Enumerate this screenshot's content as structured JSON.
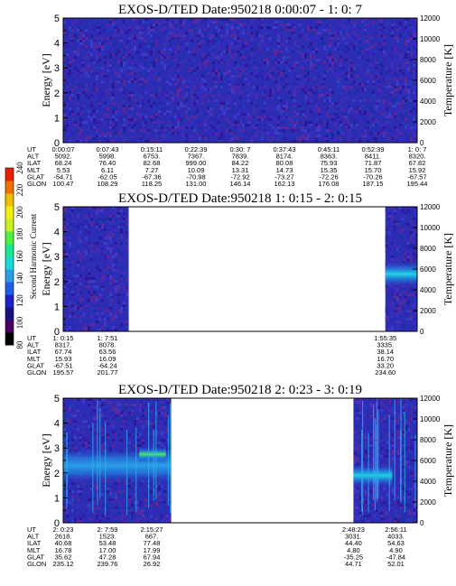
{
  "colorbar": {
    "label": "Second Harmonic Current",
    "ticks": [
      "80",
      "100",
      "120",
      "140",
      "160",
      "180",
      "200",
      "220",
      "240"
    ],
    "colors": [
      "#000000",
      "#4a0060",
      "#1a1080",
      "#2020c8",
      "#1f5fe8",
      "#2a9fe8",
      "#18d8d8",
      "#18e890",
      "#50f040",
      "#c8f020",
      "#f0f010",
      "#f0c000",
      "#f07000",
      "#e82000"
    ]
  },
  "info_row_labels": [
    "UT",
    "ALT",
    "ILAT",
    "MLT",
    "GLAT",
    "GLON"
  ],
  "chart_data": [
    {
      "type": "heatmap",
      "title": "EXOS-D/TED   Date:950218  0:00:07 - 1: 0: 7",
      "ylabel": "Energy [eV]",
      "y2label": "Temperature [K]",
      "ylim": [
        0,
        5
      ],
      "y2lim": [
        0,
        12000
      ],
      "yticks": [
        "0",
        "1",
        "2",
        "3",
        "4",
        "5"
      ],
      "y2ticks": [
        "0",
        "2000",
        "4000",
        "6000",
        "8000",
        "10000",
        "12000"
      ],
      "data_coverage": [
        [
          0,
          1
        ]
      ],
      "bands": [],
      "info_columns": [
        {
          "UT": "0:00:07",
          "ALT": "5092.",
          "ILAT": "68.24",
          "MLT": "5.53",
          "GLAT": "-54.71",
          "GLON": "100.47"
        },
        {
          "UT": "0:07:43",
          "ALT": "5998.",
          "ILAT": "76.40",
          "MLT": "6.11",
          "GLAT": "-62.05",
          "GLON": "108.29"
        },
        {
          "UT": "0:15:11",
          "ALT": "6753.",
          "ILAT": "82.68",
          "MLT": "7.27",
          "GLAT": "-67.36",
          "GLON": "118.25"
        },
        {
          "UT": "0:22:39",
          "ALT": "7367.",
          "ILAT": "999.00",
          "MLT": "10.09",
          "GLAT": "-70.98",
          "GLON": "131.00"
        },
        {
          "UT": "0:30: 7",
          "ALT": "7839.",
          "ILAT": "84.22",
          "MLT": "13.31",
          "GLAT": "-72.92",
          "GLON": "146.14"
        },
        {
          "UT": "0:37:43",
          "ALT": "8174.",
          "ILAT": "80.08",
          "MLT": "14.73",
          "GLAT": "-73.27",
          "GLON": "162.13"
        },
        {
          "UT": "0:45:11",
          "ALT": "8363.",
          "ILAT": "75.93",
          "MLT": "15.35",
          "GLAT": "-72.26",
          "GLON": "176.08"
        },
        {
          "UT": "0:52:39",
          "ALT": "8411.",
          "ILAT": "71.87",
          "MLT": "15.70",
          "GLAT": "-70.26",
          "GLON": "187.15"
        },
        {
          "UT": "1: 0: 7",
          "ALT": "8320.",
          "ILAT": "67.82",
          "MLT": "15.92",
          "GLAT": "-67.57",
          "GLON": "195.44"
        }
      ],
      "info_positions": [
        0,
        0.125,
        0.25,
        0.375,
        0.5,
        0.625,
        0.75,
        0.875,
        1
      ]
    },
    {
      "type": "heatmap",
      "title": "EXOS-D/TED   Date:950218  1: 0:15 - 2: 0:15",
      "ylabel": "Energy [eV]",
      "y2label": "Temperature [K]",
      "ylim": [
        0,
        5
      ],
      "y2lim": [
        0,
        12000
      ],
      "yticks": [
        "0",
        "1",
        "2",
        "3",
        "4",
        "5"
      ],
      "y2ticks": [
        "0",
        "2000",
        "4000",
        "6000",
        "8000",
        "10000",
        "12000"
      ],
      "data_coverage": [
        [
          0,
          0.185
        ],
        [
          0.91,
          1
        ]
      ],
      "bands": [
        {
          "x0": 0.91,
          "x1": 1,
          "e_center": 2.3,
          "e_halfwidth": 0.55,
          "peak": "#1fd8e0"
        }
      ],
      "info_columns": [
        {
          "UT": "1: 0:15",
          "ALT": "8317.",
          "ILAT": "67.74",
          "MLT": "15.93",
          "GLAT": "-67.51",
          "GLON": "195.57"
        },
        {
          "UT": "1: 7:51",
          "ALT": "8078.",
          "ILAT": "63.56",
          "MLT": "16.09",
          "GLAT": "-64.24",
          "GLON": "201.77"
        },
        {
          "UT": "1:55:35",
          "ALT": "3335.",
          "ILAT": "38.14",
          "MLT": "16.70",
          "GLAT": "33.20",
          "GLON": "234.60"
        }
      ],
      "info_positions": [
        0,
        0.125,
        0.91
      ]
    },
    {
      "type": "heatmap",
      "title": "EXOS-D/TED   Date:950218  2: 0:23 - 3: 0:19",
      "ylabel": "Energy [eV]",
      "y2label": "Temperature [K]",
      "ylim": [
        0,
        5
      ],
      "y2lim": [
        0,
        12000
      ],
      "yticks": [
        "0",
        "1",
        "2",
        "3",
        "4",
        "5"
      ],
      "y2ticks": [
        "0",
        "2000",
        "4000",
        "6000",
        "8000",
        "10000",
        "12000"
      ],
      "data_coverage": [
        [
          0,
          0.305
        ],
        [
          0.82,
          1
        ]
      ],
      "bands": [
        {
          "x0": 0,
          "x1": 0.305,
          "e_center": 2.3,
          "e_halfwidth": 0.75,
          "peak": "#2a9fe8"
        },
        {
          "x0": 0.215,
          "x1": 0.29,
          "e_center": 2.75,
          "e_halfwidth": 0.35,
          "peak": "#4cf050"
        },
        {
          "x0": 0.82,
          "x1": 0.93,
          "e_center": 1.9,
          "e_halfwidth": 0.5,
          "peak": "#18d8d8"
        }
      ],
      "info_columns": [
        {
          "UT": "2: 0:23",
          "ALT": "2618.",
          "ILAT": "40.68",
          "MLT": "16.78",
          "GLAT": "35.62",
          "GLON": "235.12"
        },
        {
          "UT": "2: 7:59",
          "ALT": "1523.",
          "ILAT": "53.48",
          "MLT": "17.00",
          "GLAT": "47.28",
          "GLON": "239.76"
        },
        {
          "UT": "2:15:27",
          "ALT": "667.",
          "ILAT": "77.48",
          "MLT": "17.99",
          "GLAT": "67.94",
          "GLON": "26.92"
        },
        {
          "UT": "2:48:23",
          "ALT": "3031.",
          "ILAT": "44.40",
          "MLT": "4.80",
          "GLAT": "-35.25",
          "GLON": "44.71"
        },
        {
          "UT": "2:56:11",
          "ALT": "4033.",
          "ILAT": "54.63",
          "MLT": "4.90",
          "GLAT": "-47.84",
          "GLON": "52.01"
        }
      ],
      "info_positions": [
        0,
        0.125,
        0.25,
        0.82,
        0.94
      ]
    }
  ]
}
